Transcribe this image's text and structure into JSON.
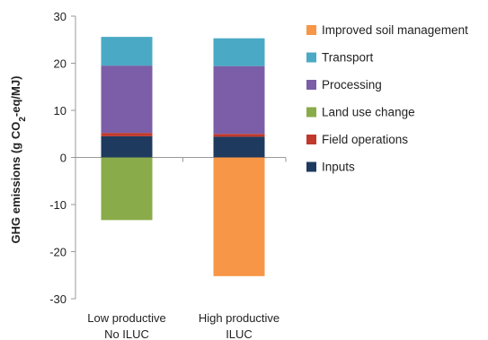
{
  "chart_data": {
    "type": "bar",
    "stacked": true,
    "title": "",
    "xlabel": "",
    "ylabel": {
      "prefix": "GHG emissions (g CO",
      "subscript": "2",
      "suffix": "-eq/MJ)"
    },
    "ylim": [
      -30,
      30
    ],
    "yticks": [
      -30,
      -20,
      -10,
      0,
      10,
      20,
      30
    ],
    "grid": false,
    "legend_position": "right",
    "categories": [
      {
        "line1": "Low productive",
        "line2": "No ILUC"
      },
      {
        "line1": "High productive",
        "line2": "ILUC"
      }
    ],
    "series": [
      {
        "name": "Inputs",
        "color": "#1f3a5f",
        "values": [
          4.5,
          4.4
        ]
      },
      {
        "name": "Field operations",
        "color": "#c0392b",
        "values": [
          0.7,
          0.6
        ]
      },
      {
        "name": "Land use change",
        "color": "#8aab4a",
        "values": [
          -13.3,
          0
        ]
      },
      {
        "name": "Processing",
        "color": "#7b5ea7",
        "values": [
          14.3,
          14.4
        ]
      },
      {
        "name": "Transport",
        "color": "#4aaac5",
        "values": [
          6.1,
          5.9
        ]
      },
      {
        "name": "Improved soil management",
        "color": "#f79646",
        "values": [
          0,
          -25.2
        ]
      }
    ],
    "legend_order": [
      5,
      4,
      3,
      2,
      1,
      0
    ]
  }
}
